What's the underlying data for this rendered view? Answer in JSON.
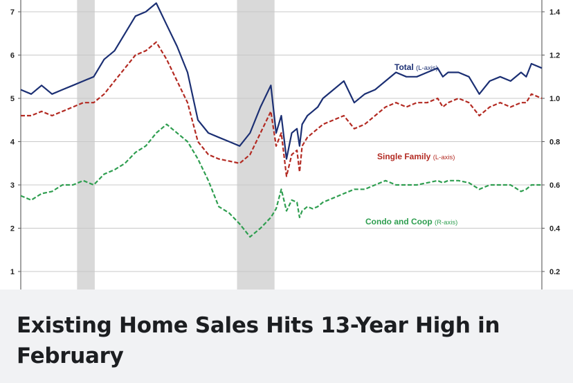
{
  "caption": {
    "title": "Existing Home Sales Hits 13-Year High in February"
  },
  "chart_data": {
    "type": "line",
    "title": "",
    "xlabel": "",
    "left_axis": {
      "ticks": [
        "1",
        "2",
        "3",
        "4",
        "5",
        "6",
        "7"
      ],
      "ylim": [
        0.6,
        7.4
      ]
    },
    "right_axis": {
      "ticks": [
        "0.2",
        "0.4",
        "0.6",
        "0.8",
        "1.0",
        "1.2",
        "1.4"
      ],
      "ylim": [
        0.12,
        1.48
      ]
    },
    "grid": true,
    "recession_bands": [
      [
        0.108,
        0.142
      ],
      [
        0.415,
        0.487
      ]
    ],
    "series": [
      {
        "name": "Total",
        "axis_note": "(L-axis)",
        "axis": "left",
        "color": "#1b2f73",
        "dash": "solid",
        "x": [
          0,
          0.02,
          0.04,
          0.06,
          0.08,
          0.1,
          0.12,
          0.14,
          0.16,
          0.18,
          0.2,
          0.22,
          0.24,
          0.26,
          0.28,
          0.3,
          0.32,
          0.34,
          0.36,
          0.38,
          0.4,
          0.42,
          0.44,
          0.46,
          0.48,
          0.49,
          0.5,
          0.51,
          0.52,
          0.53,
          0.535,
          0.54,
          0.55,
          0.56,
          0.57,
          0.58,
          0.6,
          0.62,
          0.64,
          0.66,
          0.68,
          0.7,
          0.72,
          0.74,
          0.76,
          0.78,
          0.8,
          0.81,
          0.82,
          0.84,
          0.86,
          0.88,
          0.9,
          0.92,
          0.94,
          0.96,
          0.97,
          0.98,
          1.0
        ],
        "values": [
          5.2,
          5.1,
          5.3,
          5.1,
          5.2,
          5.3,
          5.4,
          5.5,
          5.9,
          6.1,
          6.5,
          6.9,
          7.0,
          7.2,
          6.7,
          6.2,
          5.6,
          4.5,
          4.2,
          4.1,
          4.0,
          3.9,
          4.2,
          4.8,
          5.3,
          4.2,
          4.6,
          3.6,
          4.2,
          4.3,
          3.9,
          4.4,
          4.6,
          4.7,
          4.8,
          5.0,
          5.2,
          5.4,
          4.9,
          5.1,
          5.2,
          5.4,
          5.6,
          5.5,
          5.5,
          5.6,
          5.7,
          5.5,
          5.6,
          5.6,
          5.5,
          5.1,
          5.4,
          5.5,
          5.4,
          5.6,
          5.5,
          5.8,
          5.7
        ]
      },
      {
        "name": "Single Family",
        "axis_note": "(L-axis)",
        "axis": "left",
        "color": "#b32a22",
        "dash": "dashed",
        "x": [
          0,
          0.02,
          0.04,
          0.06,
          0.08,
          0.1,
          0.12,
          0.14,
          0.16,
          0.18,
          0.2,
          0.22,
          0.24,
          0.26,
          0.28,
          0.3,
          0.32,
          0.34,
          0.36,
          0.38,
          0.4,
          0.42,
          0.44,
          0.46,
          0.48,
          0.49,
          0.5,
          0.51,
          0.52,
          0.53,
          0.535,
          0.54,
          0.55,
          0.56,
          0.57,
          0.58,
          0.6,
          0.62,
          0.64,
          0.66,
          0.68,
          0.7,
          0.72,
          0.74,
          0.76,
          0.78,
          0.8,
          0.81,
          0.82,
          0.84,
          0.86,
          0.88,
          0.9,
          0.92,
          0.94,
          0.96,
          0.97,
          0.98,
          1.0
        ],
        "values": [
          4.6,
          4.6,
          4.7,
          4.6,
          4.7,
          4.8,
          4.9,
          4.9,
          5.1,
          5.4,
          5.7,
          6.0,
          6.1,
          6.3,
          5.9,
          5.4,
          4.9,
          4.0,
          3.7,
          3.6,
          3.55,
          3.5,
          3.7,
          4.2,
          4.7,
          3.9,
          4.2,
          3.2,
          3.7,
          3.8,
          3.3,
          3.9,
          4.1,
          4.2,
          4.3,
          4.4,
          4.5,
          4.6,
          4.3,
          4.4,
          4.6,
          4.8,
          4.9,
          4.8,
          4.9,
          4.9,
          5.0,
          4.8,
          4.9,
          5.0,
          4.9,
          4.6,
          4.8,
          4.9,
          4.8,
          4.9,
          4.9,
          5.1,
          5.0
        ]
      },
      {
        "name": "Condo and Coop",
        "axis_note": "(R-axis)",
        "axis": "right",
        "color": "#2f9e50",
        "dash": "dashed",
        "x": [
          0,
          0.02,
          0.04,
          0.06,
          0.08,
          0.1,
          0.12,
          0.14,
          0.16,
          0.18,
          0.2,
          0.22,
          0.24,
          0.26,
          0.28,
          0.3,
          0.32,
          0.34,
          0.36,
          0.38,
          0.4,
          0.42,
          0.44,
          0.46,
          0.48,
          0.49,
          0.5,
          0.51,
          0.52,
          0.53,
          0.535,
          0.54,
          0.55,
          0.56,
          0.57,
          0.58,
          0.6,
          0.62,
          0.64,
          0.66,
          0.68,
          0.7,
          0.72,
          0.74,
          0.76,
          0.78,
          0.8,
          0.81,
          0.82,
          0.84,
          0.86,
          0.88,
          0.9,
          0.92,
          0.94,
          0.96,
          0.97,
          0.98,
          1.0
        ],
        "values": [
          0.55,
          0.53,
          0.56,
          0.57,
          0.6,
          0.6,
          0.62,
          0.6,
          0.65,
          0.67,
          0.7,
          0.75,
          0.78,
          0.84,
          0.88,
          0.84,
          0.8,
          0.72,
          0.62,
          0.5,
          0.47,
          0.42,
          0.36,
          0.4,
          0.45,
          0.49,
          0.58,
          0.48,
          0.53,
          0.52,
          0.45,
          0.48,
          0.5,
          0.49,
          0.5,
          0.52,
          0.54,
          0.56,
          0.58,
          0.58,
          0.6,
          0.62,
          0.6,
          0.6,
          0.6,
          0.61,
          0.62,
          0.61,
          0.62,
          0.62,
          0.61,
          0.58,
          0.6,
          0.6,
          0.6,
          0.57,
          0.58,
          0.6,
          0.6
        ]
      }
    ]
  }
}
